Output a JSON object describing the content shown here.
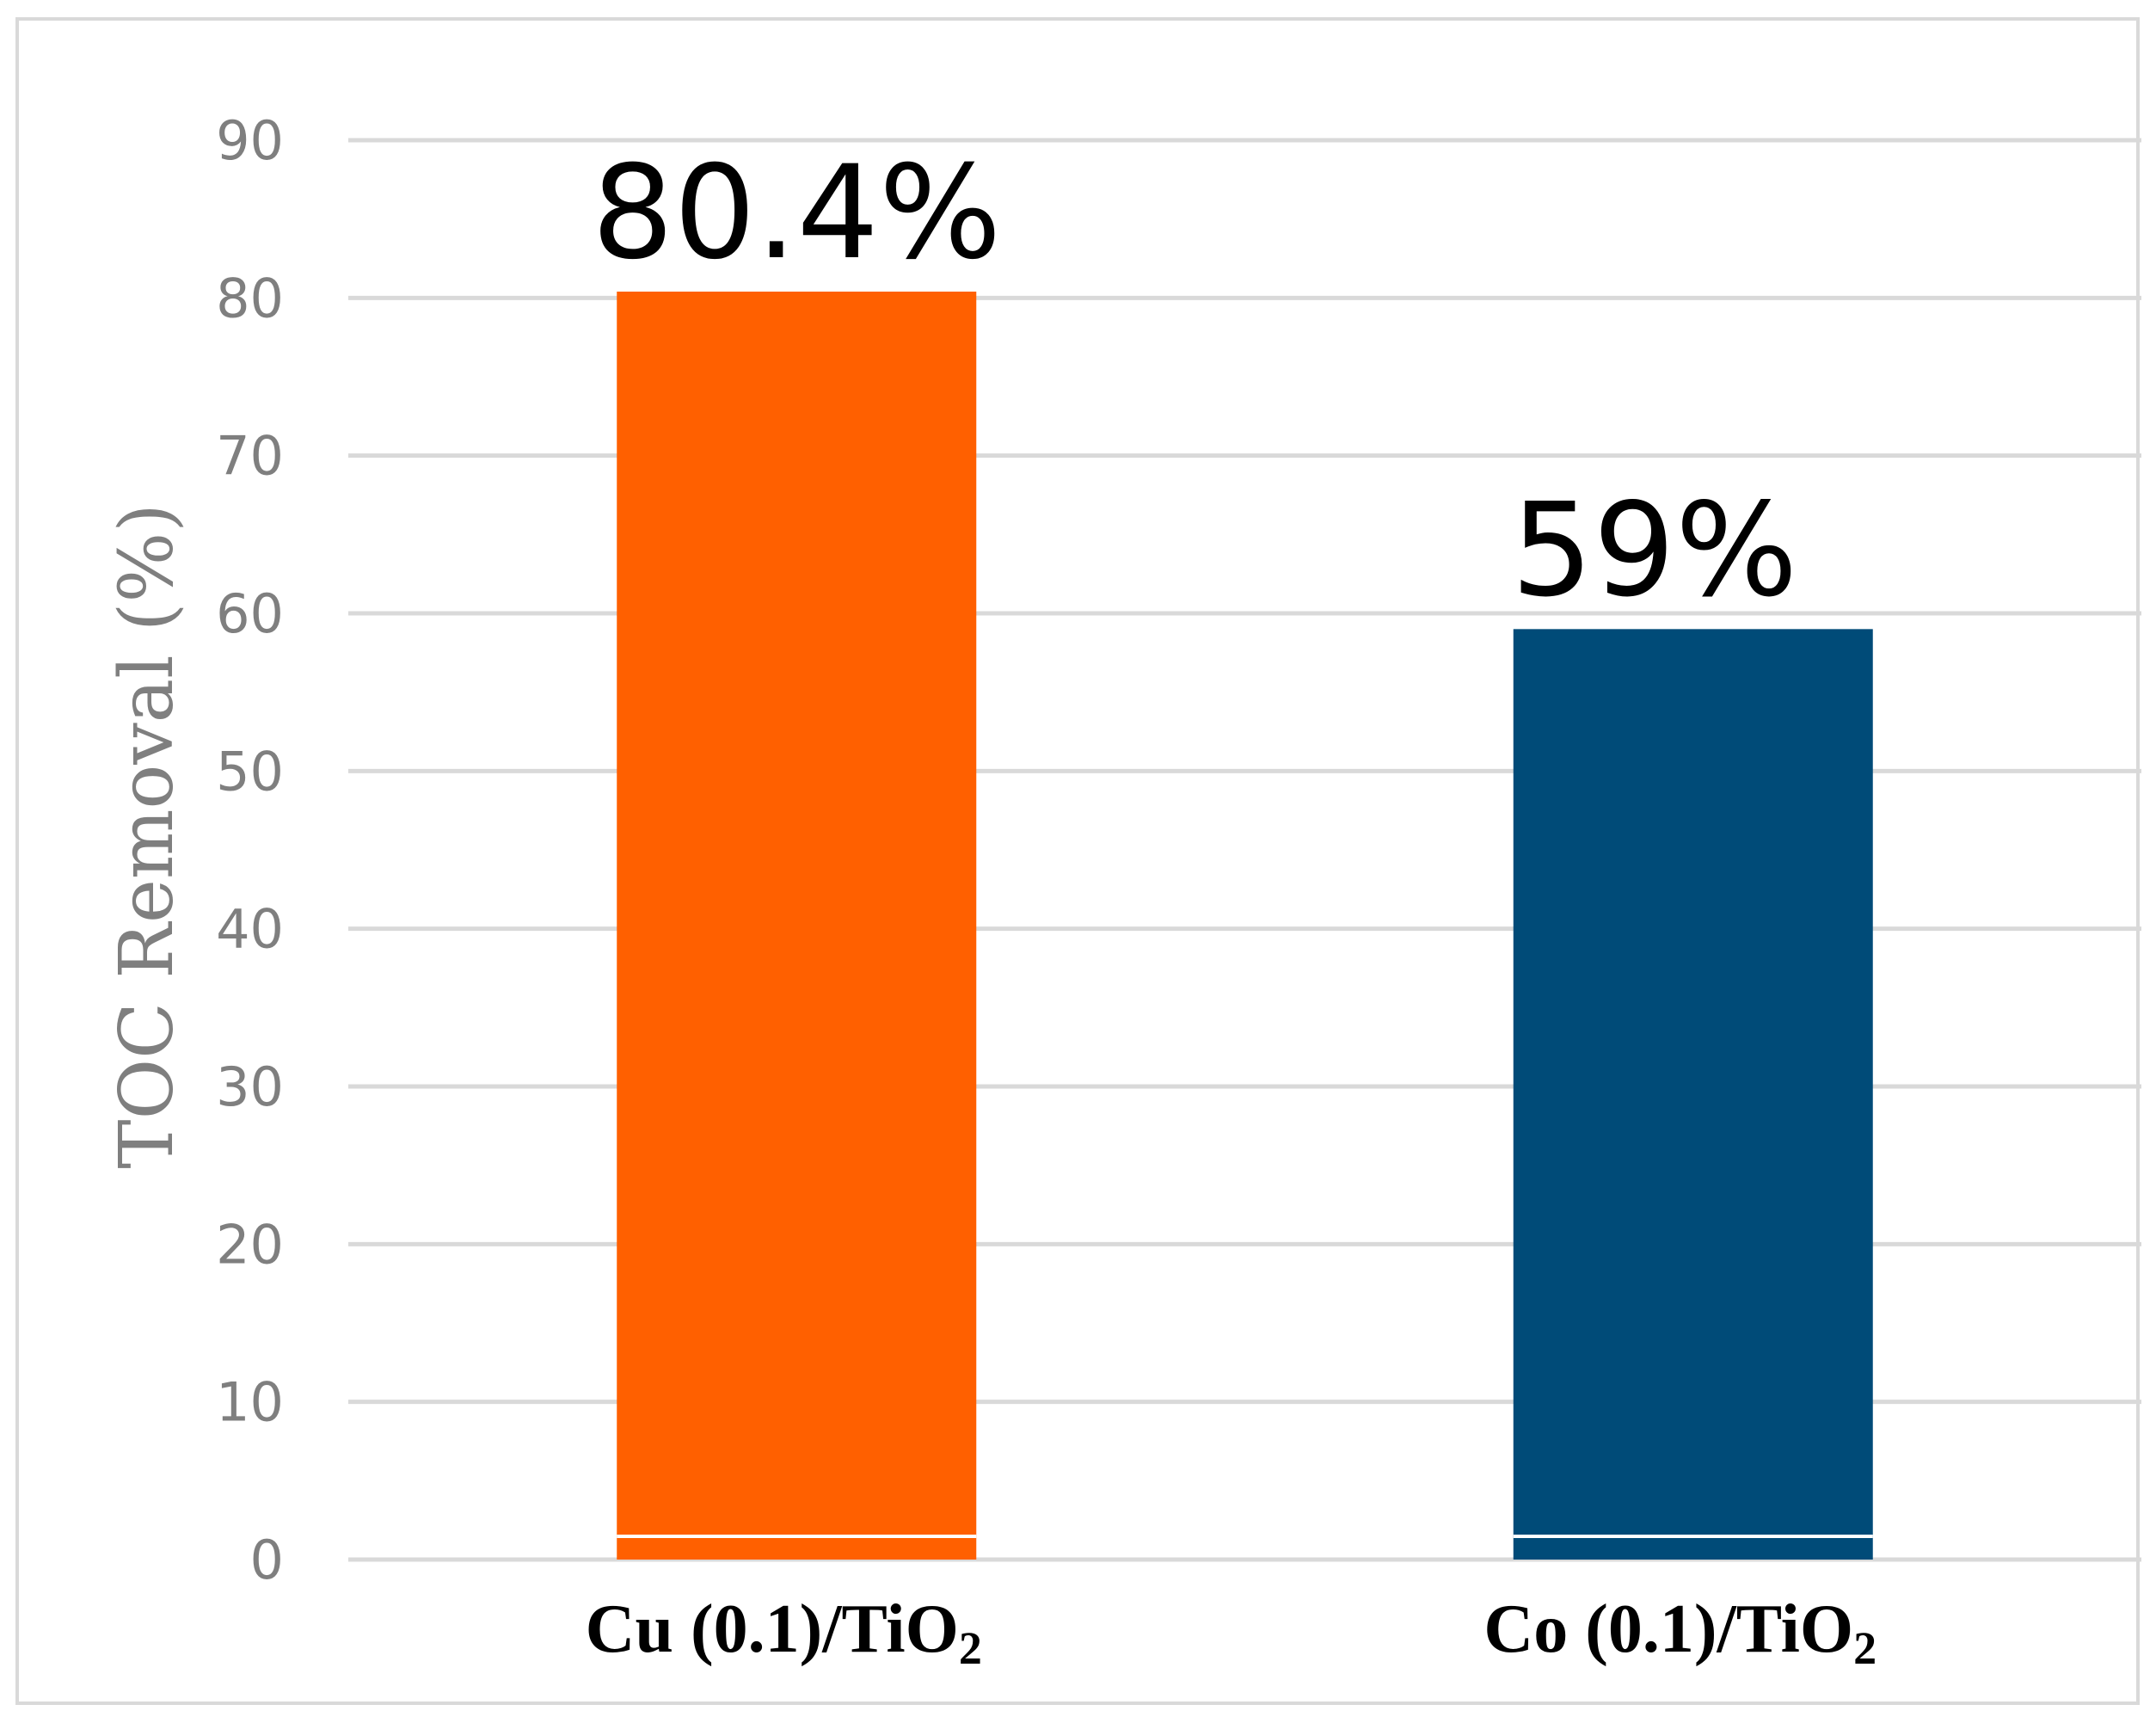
{
  "chart_data": {
    "type": "bar",
    "categories": [
      "Cu (0.1)/TiO",
      "Co (0.1)/TiO"
    ],
    "category_subscripts": [
      "2",
      "2"
    ],
    "values": [
      80.4,
      59
    ],
    "data_labels": [
      "80.4%",
      "59%"
    ],
    "colors": [
      "#ff6000",
      "#004b78"
    ],
    "title": "",
    "xlabel": "",
    "ylabel": "TOC Removal (%)",
    "ylim": [
      0,
      90
    ],
    "yticks": [
      0,
      10,
      20,
      30,
      40,
      50,
      60,
      70,
      80,
      90
    ],
    "grid": true,
    "legend": "none"
  }
}
